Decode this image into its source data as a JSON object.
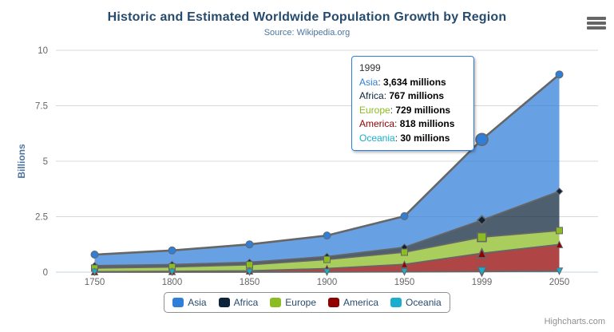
{
  "title": "Historic and Estimated Worldwide Population Growth by Region",
  "subtitle": "Source: Wikipedia.org",
  "credits": "Highcharts.com",
  "export_menu_icon": "hamburger-menu-icon",
  "chart_data": {
    "type": "area",
    "stacked": true,
    "title": "Historic and Estimated Worldwide Population Growth by Region",
    "subtitle": "Source: Wikipedia.org",
    "xlabel": "",
    "ylabel": "Billions",
    "ylim": [
      0,
      10
    ],
    "yticks": [
      0,
      2.5,
      5,
      7.5,
      10
    ],
    "grid": true,
    "legend_position": "bottom",
    "values_unit": "millions",
    "categories": [
      "1750",
      "1800",
      "1850",
      "1900",
      "1950",
      "1999",
      "2050"
    ],
    "series": [
      {
        "name": "Asia",
        "color": "#2f7ed8",
        "marker": "circle",
        "values": [
          502,
          635,
          809,
          947,
          1402,
          3634,
          5268
        ]
      },
      {
        "name": "Africa",
        "color": "#0d233a",
        "marker": "diamond",
        "values": [
          106,
          107,
          111,
          133,
          221,
          767,
          1766
        ]
      },
      {
        "name": "Europe",
        "color": "#8bbc21",
        "marker": "square",
        "values": [
          163,
          203,
          276,
          408,
          547,
          729,
          628
        ]
      },
      {
        "name": "America",
        "color": "#910000",
        "marker": "triangle",
        "values": [
          18,
          31,
          54,
          156,
          339,
          818,
          1201
        ]
      },
      {
        "name": "Oceania",
        "color": "#1aadce",
        "marker": "triangle-down",
        "values": [
          2,
          2,
          2,
          6,
          13,
          30,
          46
        ]
      }
    ],
    "hovered_category_index": 5,
    "line_color": "#666666",
    "grid_color": "#d8d8d8",
    "axis_line_color": "#c0d0e0"
  },
  "tooltip": {
    "header": "1999",
    "rows": [
      {
        "label": "Asia",
        "value": "3,634 millions"
      },
      {
        "label": "Africa",
        "value": "767 millions"
      },
      {
        "label": "Europe",
        "value": "729 millions"
      },
      {
        "label": "America",
        "value": "818 millions"
      },
      {
        "label": "Oceania",
        "value": "30 millions"
      }
    ]
  }
}
